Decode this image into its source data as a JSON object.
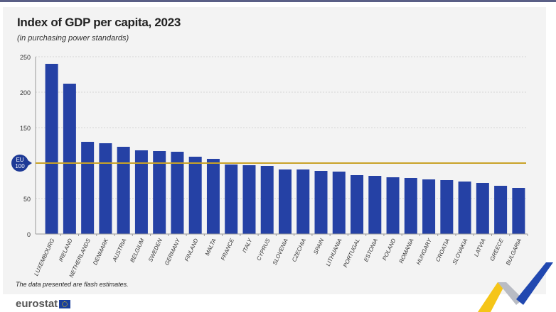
{
  "chart_data": {
    "type": "bar",
    "title": "Index of GDP per capita, 2023",
    "subtitle": "(in purchasing power standards)",
    "categories": [
      "LUXEMBOURG",
      "IRELAND",
      "NETHERLANDS",
      "DENMARK",
      "AUSTRIA",
      "BELGIUM",
      "SWEDEN",
      "GERMANY",
      "FINLAND",
      "MALTA",
      "FRANCE",
      "ITALY",
      "CYPRUS",
      "SLOVENIA",
      "CZECHIA",
      "SPAIN",
      "LITHUANIA",
      "PORTUGAL",
      "ESTONIA",
      "POLAND",
      "ROMANIA",
      "HUNGARY",
      "CROATIA",
      "SLOVAKIA",
      "LATVIA",
      "GREECE",
      "BULGARIA"
    ],
    "values": [
      240,
      212,
      130,
      128,
      123,
      118,
      117,
      116,
      109,
      106,
      98,
      97,
      96,
      91,
      91,
      89,
      88,
      83,
      82,
      80,
      79,
      77,
      76,
      74,
      72,
      68,
      65
    ],
    "ylim": [
      0,
      250
    ],
    "yticks": [
      0,
      50,
      150,
      200,
      250
    ],
    "grid": true,
    "reference_line": {
      "value": 100,
      "label_line1": "EU",
      "label_line2": "100",
      "color": "#c9a227"
    },
    "bar_color": "#2541a5",
    "note": "The data presented are flash estimates."
  },
  "footer": {
    "logo_text": "eurostat"
  }
}
